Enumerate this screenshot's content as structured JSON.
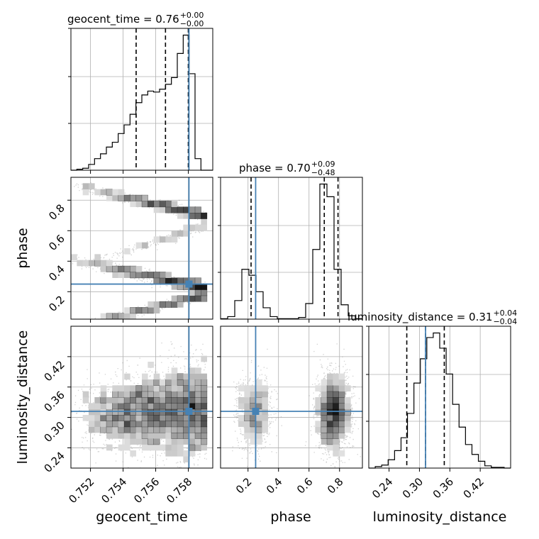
{
  "chart_data": {
    "type": "corner",
    "parameters": [
      "geocent_time",
      "phase",
      "luminosity_distance"
    ],
    "titles": [
      {
        "label": "geocent_time = 0.76",
        "plus": "+0.00",
        "minus": "−0.00"
      },
      {
        "label": "phase = 0.70",
        "plus": "+0.09",
        "minus": "−0.48"
      },
      {
        "label": "luminosity_distance = 0.31",
        "plus": "+0.04",
        "minus": "−0.04"
      }
    ],
    "ranges": [
      [
        0.7508,
        0.7595
      ],
      [
        0.02,
        0.95
      ],
      [
        0.2,
        0.48
      ]
    ],
    "ticks": [
      {
        "values": [
          0.752,
          0.754,
          0.756,
          0.758
        ],
        "labels": [
          "0.752",
          "0.754",
          "0.756",
          "0.758"
        ]
      },
      {
        "values": [
          0.2,
          0.4,
          0.6,
          0.8
        ],
        "labels": [
          "0.2",
          "0.4",
          "0.6",
          "0.8"
        ]
      },
      {
        "values": [
          0.24,
          0.3,
          0.36,
          0.42
        ],
        "labels": [
          "0.24",
          "0.30",
          "0.36",
          "0.42"
        ]
      }
    ],
    "truths": [
      0.75804,
      0.25,
      0.312
    ],
    "truth_color": "#4682b4",
    "quantiles": [
      [
        0.7548,
        0.7566,
        0.758
      ],
      [
        0.22,
        0.7,
        0.79
      ],
      [
        0.275,
        0.312,
        0.349
      ]
    ],
    "histograms": [
      {
        "edges_min": 0.7508,
        "edges_max": 0.7595,
        "counts": [
          0,
          1,
          2,
          6,
          12,
          17,
          24,
          29,
          38,
          47,
          58,
          70,
          78,
          82,
          81,
          84,
          89,
          96,
          121,
          140,
          100,
          12,
          0,
          0
        ]
      },
      {
        "edges_min": 0.02,
        "edges_max": 0.95,
        "counts": [
          1,
          6,
          44,
          118,
          104,
          65,
          27,
          6,
          1,
          1,
          1,
          4,
          37,
          165,
          320,
          290,
          118,
          34,
          8,
          1
        ]
      },
      {
        "edges_min": 0.2,
        "edges_max": 0.48,
        "counts": [
          0,
          2,
          4,
          11,
          23,
          40,
          72,
          112,
          144,
          172,
          178,
          158,
          124,
          84,
          54,
          31,
          18,
          9,
          3,
          1,
          1,
          0
        ]
      }
    ],
    "grid": true,
    "axis_labels": [
      "geocent_time",
      "phase",
      "luminosity_distance"
    ],
    "title_color": "#000000",
    "density_color": "#000000"
  }
}
